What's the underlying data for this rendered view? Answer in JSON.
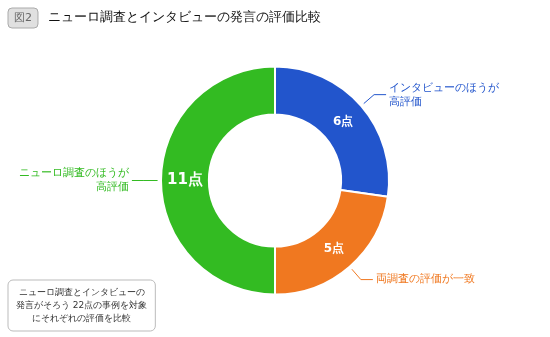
{
  "chart_data": {
    "type": "doughnut",
    "title": "ニューロ調査とインタビューの発言の評価比較",
    "fig_label": "図2",
    "categories": [
      "インタビューのほうが\n高評価",
      "両調査の評価が一致",
      "ニューロ調査のほうが\n高評価"
    ],
    "values": [
      6,
      5,
      11
    ],
    "value_labels": [
      "6点",
      "5点",
      "11点"
    ],
    "colors": [
      "#2255cc",
      "#f07820",
      "#33bb22"
    ],
    "data_labels": true,
    "annotations": [
      "ニューロ調査とインタビューの\n発言がそろう 22点の事例を対象\nにそれぞれの評価を比較"
    ]
  }
}
